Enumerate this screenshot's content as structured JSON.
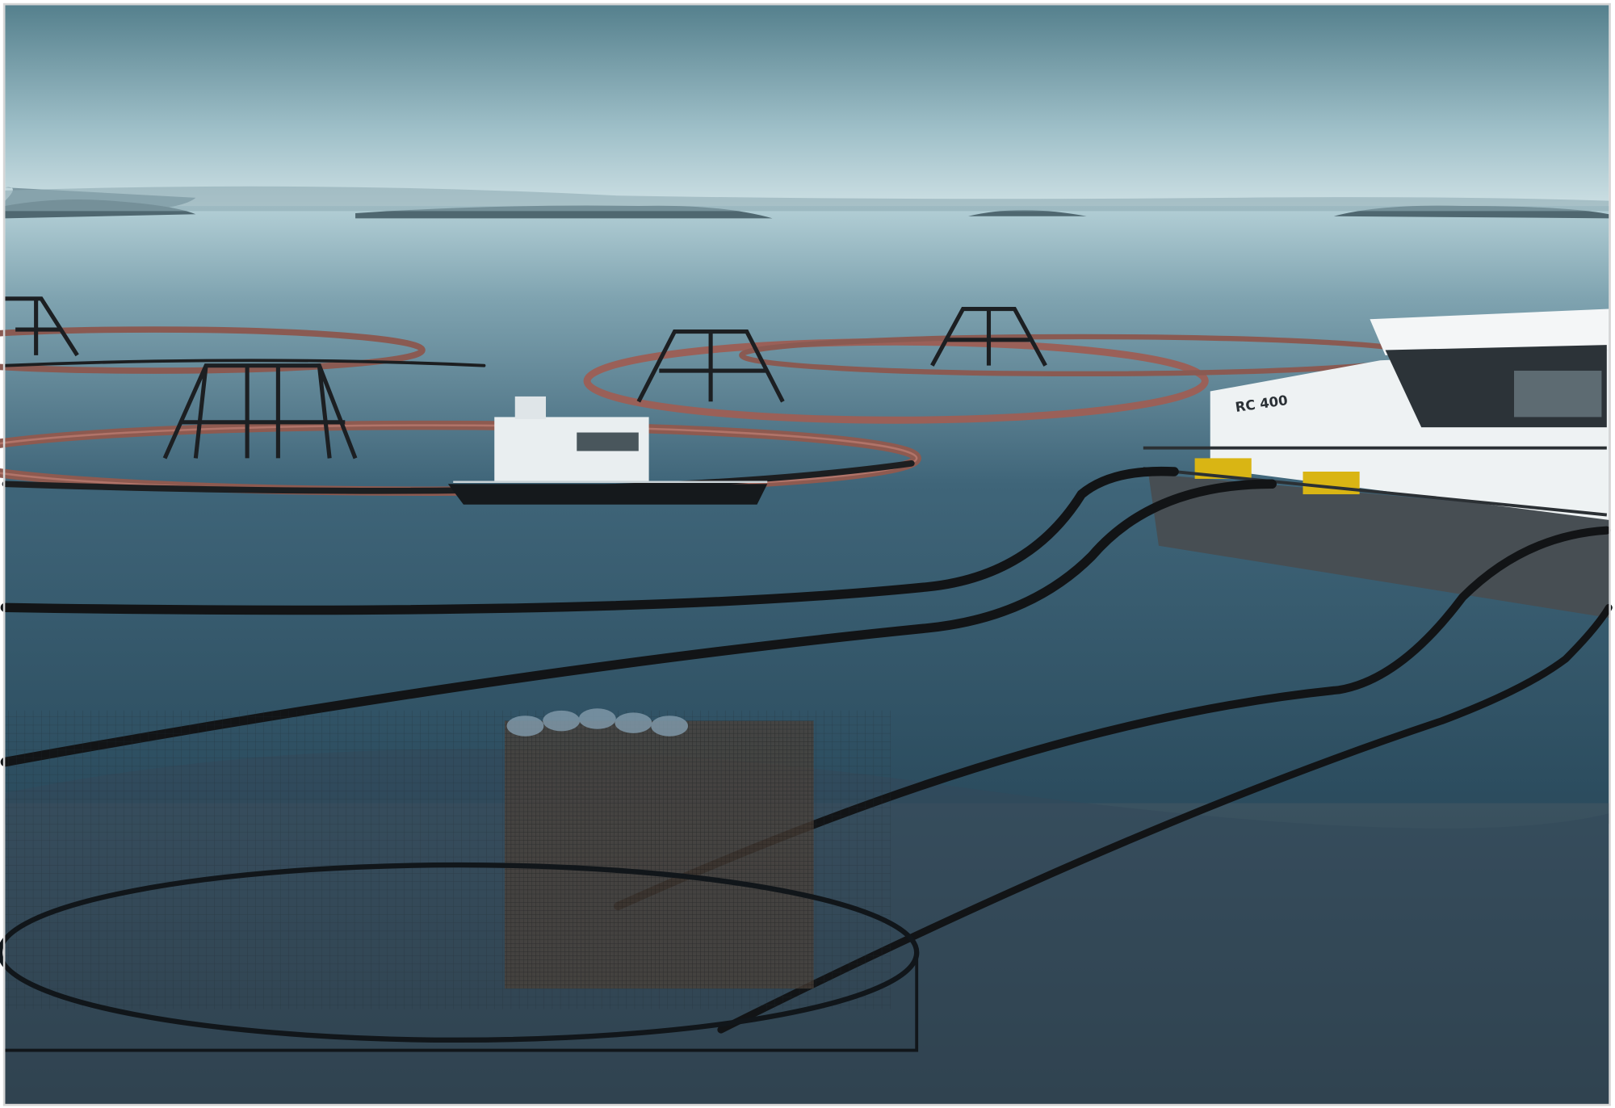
{
  "image": {
    "vessel_label": "RC 400"
  }
}
